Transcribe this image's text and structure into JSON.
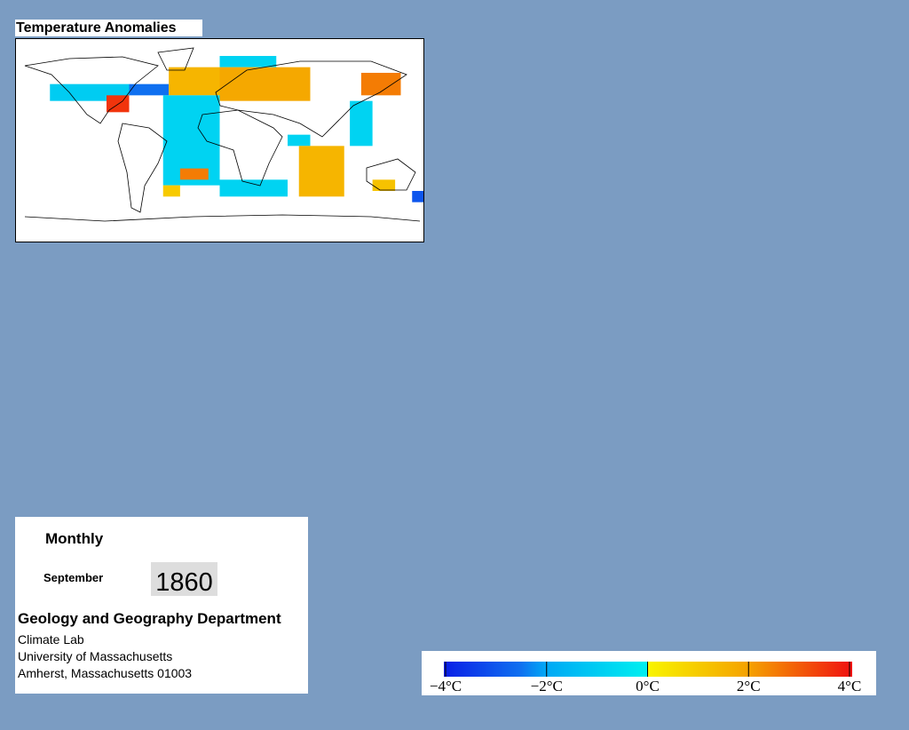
{
  "map": {
    "title": "Temperature Anomalies",
    "colormap": [
      {
        "value": -4,
        "color": "#0a1ee6"
      },
      {
        "value": -2.5,
        "color": "#0f70f0"
      },
      {
        "value": -2,
        "color": "#00a8f5"
      },
      {
        "value": -0.01,
        "color": "#00f0f0"
      },
      {
        "value": 0,
        "color": "#f8f400"
      },
      {
        "value": 2,
        "color": "#f5a000"
      },
      {
        "value": 4,
        "color": "#f01010"
      }
    ],
    "cells": [
      {
        "lon0": -150,
        "lon1": -80,
        "lat0": 35,
        "lat1": 50,
        "value": -1
      },
      {
        "lon0": -100,
        "lon1": -80,
        "lat0": 25,
        "lat1": 40,
        "value": 3.5
      },
      {
        "lon0": -80,
        "lon1": -45,
        "lat0": 40,
        "lat1": 50,
        "value": -2.5
      },
      {
        "lon0": -45,
        "lon1": 0,
        "lat0": 40,
        "lat1": 65,
        "value": 1.5
      },
      {
        "lon0": -50,
        "lon1": 0,
        "lat0": -40,
        "lat1": 40,
        "value": -0.8
      },
      {
        "lon0": -35,
        "lon1": -10,
        "lat0": -35,
        "lat1": -25,
        "value": 2.5
      },
      {
        "lon0": -50,
        "lon1": -35,
        "lat0": -50,
        "lat1": -40,
        "value": 1
      },
      {
        "lon0": 0,
        "lon1": 60,
        "lat0": -50,
        "lat1": -35,
        "value": -0.8
      },
      {
        "lon0": 0,
        "lon1": 50,
        "lat0": 65,
        "lat1": 75,
        "value": -0.8
      },
      {
        "lon0": 0,
        "lon1": 80,
        "lat0": 35,
        "lat1": 65,
        "value": 1.8
      },
      {
        "lon0": 125,
        "lon1": 160,
        "lat0": 40,
        "lat1": 60,
        "value": 2.5
      },
      {
        "lon0": 115,
        "lon1": 135,
        "lat0": -5,
        "lat1": 35,
        "value": -0.8
      },
      {
        "lon0": 60,
        "lon1": 80,
        "lat0": -5,
        "lat1": 5,
        "value": -0.8
      },
      {
        "lon0": 70,
        "lon1": 110,
        "lat0": -50,
        "lat1": -5,
        "value": 1.5
      },
      {
        "lon0": 135,
        "lon1": 155,
        "lat0": -45,
        "lat1": -35,
        "value": 1.2
      },
      {
        "lon0": 170,
        "lon1": 185,
        "lat0": -55,
        "lat1": -45,
        "value": -3
      }
    ],
    "colorbar": {
      "range": [
        -4,
        4
      ],
      "ticks": [
        {
          "value": -4,
          "label": "−4°C"
        },
        {
          "value": -2,
          "label": "−2°C"
        },
        {
          "value": 0,
          "label": "0°C"
        },
        {
          "value": 2,
          "label": "2°C"
        },
        {
          "value": 4,
          "label": "4°C"
        }
      ]
    }
  },
  "panel": {
    "period": "Monthly",
    "month": "September",
    "year": "1860",
    "department": "Geology and Geography Department",
    "lines": [
      "Climate Lab",
      "University of Massachusetts",
      "Amherst, Massachusetts 01003"
    ]
  }
}
